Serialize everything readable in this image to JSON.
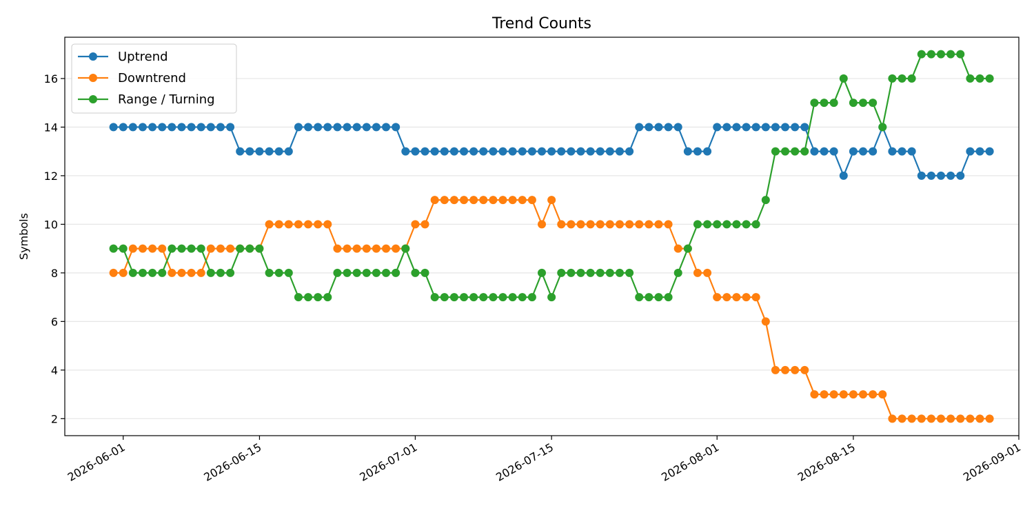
{
  "chart_data": {
    "type": "line",
    "title": "Trend Counts",
    "xlabel": "",
    "ylabel": "Symbols",
    "x_start": "2026-05-31",
    "x_end": "2026-08-29",
    "xlim": [
      "2026-05-26",
      "2026-09-01"
    ],
    "ylim": [
      1.3,
      17.7
    ],
    "yticks": [
      2,
      4,
      6,
      8,
      10,
      12,
      14,
      16
    ],
    "xticks": [
      "2026-06-01",
      "2026-06-15",
      "2026-07-01",
      "2026-07-15",
      "2026-08-01",
      "2026-08-15",
      "2026-09-01"
    ],
    "grid": "horizontal",
    "legend_position": "top-left",
    "series": [
      {
        "name": "Uptrend",
        "color": "#1f77b4",
        "values": [
          14,
          14,
          14,
          14,
          14,
          14,
          14,
          14,
          14,
          14,
          14,
          14,
          14,
          13,
          13,
          13,
          13,
          13,
          13,
          14,
          14,
          14,
          14,
          14,
          14,
          14,
          14,
          14,
          14,
          14,
          13,
          13,
          13,
          13,
          13,
          13,
          13,
          13,
          13,
          13,
          13,
          13,
          13,
          13,
          13,
          13,
          13,
          13,
          13,
          13,
          13,
          13,
          13,
          13,
          14,
          14,
          14,
          14,
          14,
          13,
          13,
          13,
          14,
          14,
          14,
          14,
          14,
          14,
          14,
          14,
          14,
          14,
          13,
          13,
          13,
          12,
          13,
          13,
          13,
          14,
          13,
          13,
          13,
          12,
          12,
          12,
          12,
          12,
          13,
          13,
          13
        ]
      },
      {
        "name": "Downtrend",
        "color": "#ff7f0e",
        "values": [
          8,
          8,
          9,
          9,
          9,
          9,
          8,
          8,
          8,
          8,
          9,
          9,
          9,
          9,
          9,
          9,
          10,
          10,
          10,
          10,
          10,
          10,
          10,
          9,
          9,
          9,
          9,
          9,
          9,
          9,
          9,
          10,
          10,
          11,
          11,
          11,
          11,
          11,
          11,
          11,
          11,
          11,
          11,
          11,
          10,
          11,
          10,
          10,
          10,
          10,
          10,
          10,
          10,
          10,
          10,
          10,
          10,
          10,
          9,
          9,
          8,
          8,
          7,
          7,
          7,
          7,
          7,
          6,
          4,
          4,
          4,
          4,
          3,
          3,
          3,
          3,
          3,
          3,
          3,
          3,
          2,
          2,
          2,
          2,
          2,
          2,
          2,
          2,
          2,
          2,
          2
        ]
      },
      {
        "name": "Range / Turning",
        "color": "#2ca02c",
        "values": [
          9,
          9,
          8,
          8,
          8,
          8,
          9,
          9,
          9,
          9,
          8,
          8,
          8,
          9,
          9,
          9,
          8,
          8,
          8,
          7,
          7,
          7,
          7,
          8,
          8,
          8,
          8,
          8,
          8,
          8,
          9,
          8,
          8,
          7,
          7,
          7,
          7,
          7,
          7,
          7,
          7,
          7,
          7,
          7,
          8,
          7,
          8,
          8,
          8,
          8,
          8,
          8,
          8,
          8,
          7,
          7,
          7,
          7,
          8,
          9,
          10,
          10,
          10,
          10,
          10,
          10,
          10,
          11,
          13,
          13,
          13,
          13,
          15,
          15,
          15,
          16,
          15,
          15,
          15,
          14,
          16,
          16,
          16,
          17,
          17,
          17,
          17,
          17,
          16,
          16,
          16
        ]
      }
    ]
  }
}
